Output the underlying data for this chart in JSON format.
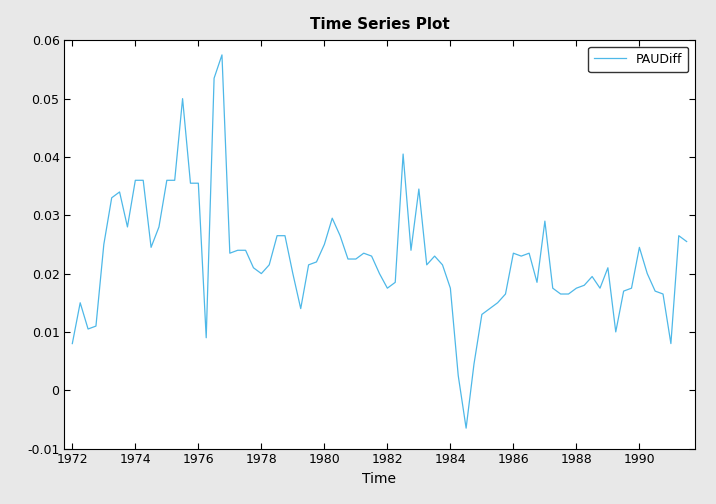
{
  "title": "Time Series Plot",
  "xlabel": "Time",
  "ylabel": "",
  "xlim": [
    1971.75,
    1991.75
  ],
  "ylim": [
    -0.01,
    0.06
  ],
  "xticks": [
    1972,
    1974,
    1976,
    1978,
    1980,
    1982,
    1984,
    1986,
    1988,
    1990
  ],
  "yticks": [
    -0.01,
    0,
    0.01,
    0.02,
    0.03,
    0.04,
    0.05,
    0.06
  ],
  "line_color": "#4eb8e8",
  "legend_label": "PAUDiff",
  "background_color": "#e8e8e8",
  "plot_background": "#ffffff",
  "time": [
    1972.0,
    1972.25,
    1972.5,
    1972.75,
    1973.0,
    1973.25,
    1973.5,
    1973.75,
    1974.0,
    1974.25,
    1974.5,
    1974.75,
    1975.0,
    1975.25,
    1975.5,
    1975.75,
    1976.0,
    1976.25,
    1976.5,
    1976.75,
    1977.0,
    1977.25,
    1977.5,
    1977.75,
    1978.0,
    1978.25,
    1978.5,
    1978.75,
    1979.0,
    1979.25,
    1979.5,
    1979.75,
    1980.0,
    1980.25,
    1980.5,
    1980.75,
    1981.0,
    1981.25,
    1981.5,
    1981.75,
    1982.0,
    1982.25,
    1982.5,
    1982.75,
    1983.0,
    1983.25,
    1983.5,
    1983.75,
    1984.0,
    1984.25,
    1984.5,
    1984.75,
    1985.0,
    1985.25,
    1985.5,
    1985.75,
    1986.0,
    1986.25,
    1986.5,
    1986.75,
    1987.0,
    1987.25,
    1987.5,
    1987.75,
    1988.0,
    1988.25,
    1988.5,
    1988.75,
    1989.0,
    1989.25,
    1989.5,
    1989.75,
    1990.0,
    1990.25,
    1990.5,
    1990.75,
    1991.0,
    1991.25,
    1991.5
  ],
  "values": [
    0.008,
    0.015,
    0.0105,
    0.011,
    0.025,
    0.033,
    0.034,
    0.028,
    0.036,
    0.036,
    0.0245,
    0.028,
    0.036,
    0.036,
    0.05,
    0.0355,
    0.0355,
    0.009,
    0.0535,
    0.0575,
    0.0235,
    0.024,
    0.024,
    0.021,
    0.02,
    0.0215,
    0.0265,
    0.0265,
    0.02,
    0.014,
    0.0215,
    0.022,
    0.025,
    0.0295,
    0.0265,
    0.0225,
    0.0225,
    0.0235,
    0.023,
    0.02,
    0.0175,
    0.0185,
    0.0405,
    0.024,
    0.0345,
    0.0215,
    0.023,
    0.0215,
    0.0175,
    0.0025,
    -0.0065,
    0.0045,
    0.013,
    0.014,
    0.015,
    0.0165,
    0.0235,
    0.023,
    0.0235,
    0.0185,
    0.029,
    0.0175,
    0.0165,
    0.0165,
    0.0175,
    0.018,
    0.0195,
    0.0175,
    0.021,
    0.01,
    0.017,
    0.0175,
    0.0245,
    0.02,
    0.017,
    0.0165,
    0.008,
    0.0265,
    0.0255
  ],
  "title_fontsize": 11,
  "tick_fontsize": 9,
  "label_fontsize": 10
}
